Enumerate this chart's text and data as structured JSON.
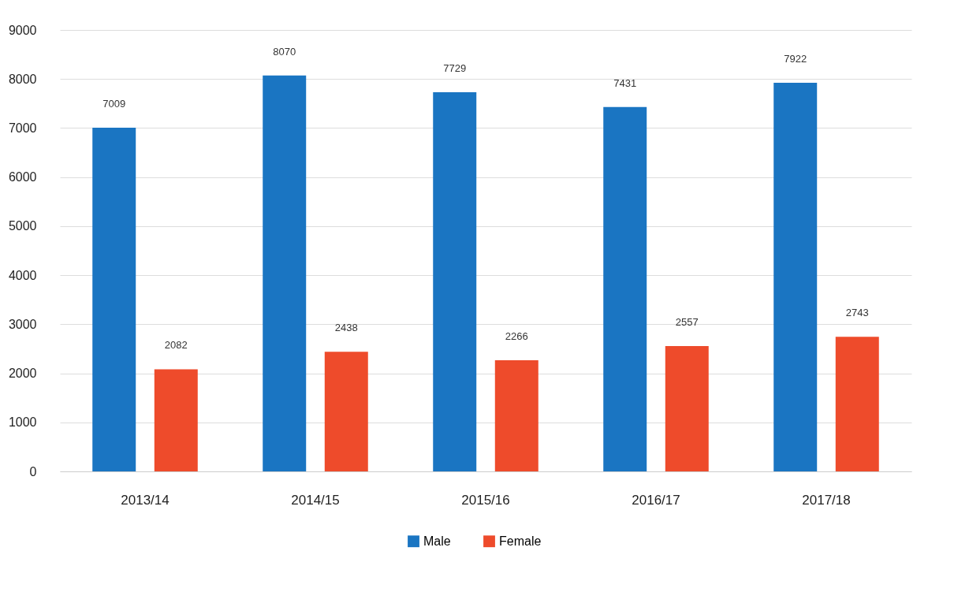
{
  "chart_data": {
    "type": "bar",
    "categories": [
      "2013/14",
      "2014/15",
      "2015/16",
      "2016/17",
      "2017/18"
    ],
    "series": [
      {
        "name": "Male",
        "color": "#1a75c2",
        "values": [
          7009,
          8070,
          7729,
          7431,
          7922
        ]
      },
      {
        "name": "Female",
        "color": "#ee4b2b",
        "values": [
          2082,
          2438,
          2266,
          2557,
          2743
        ]
      }
    ],
    "ylim": [
      0,
      9000
    ],
    "yticks": [
      0,
      1000,
      2000,
      3000,
      4000,
      5000,
      6000,
      7000,
      8000,
      9000
    ],
    "grid": "y",
    "legend": "bottom",
    "data_labels": true
  }
}
